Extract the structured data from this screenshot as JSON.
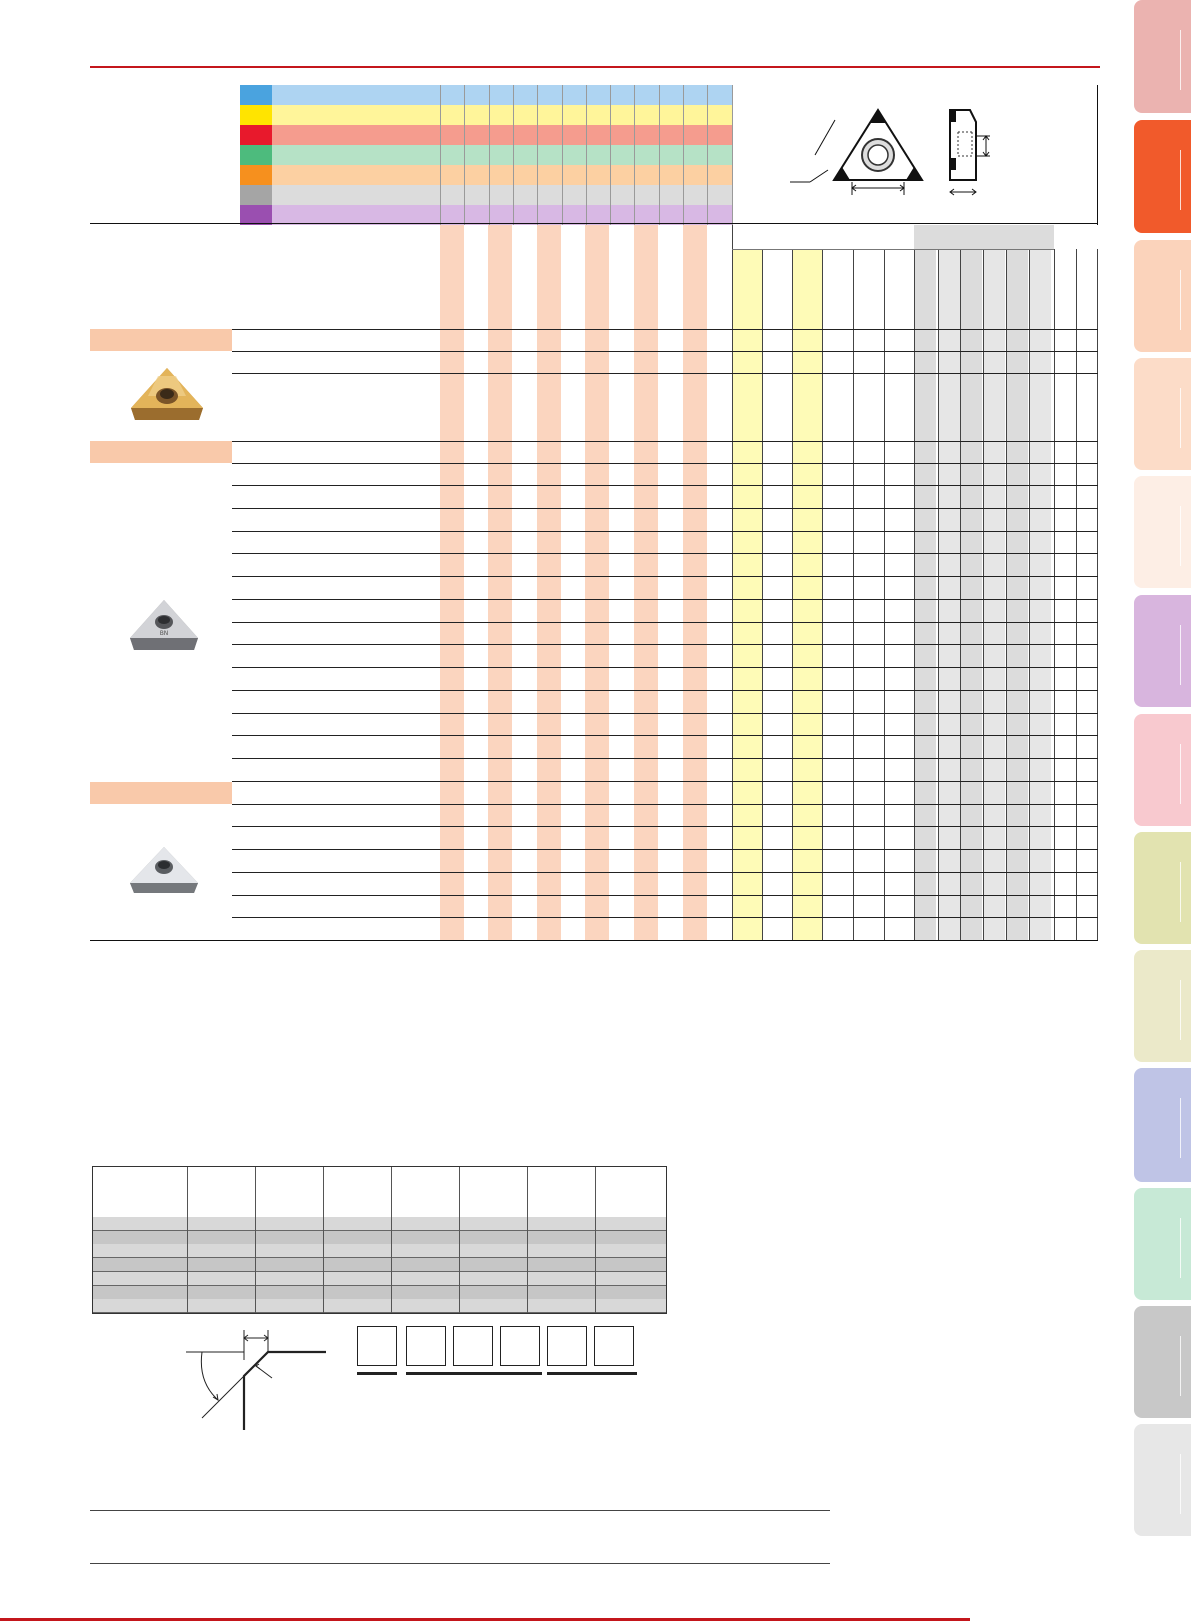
{
  "page": {
    "background": "#ffffff",
    "accent_color": "#c4161c"
  },
  "legend": {
    "swatch_colors": [
      "#4aa3df",
      "#ffe400",
      "#e8192c",
      "#4dbb7d",
      "#f6901e",
      "#a5a5a5",
      "#9a4fb0"
    ],
    "bar_colors": [
      "#aed4f2",
      "#fff59a",
      "#f59c8e",
      "#b6e2c6",
      "#fcd0a2",
      "#dcdcdc",
      "#d8b8e4"
    ]
  },
  "table": {
    "orange_column_color": "#fbd5bf",
    "yellow_column_color": "#fefbb7",
    "grey_column_color": "#dcdcdc",
    "section_band_color": "#f9c9aa",
    "sections": [
      {
        "id": "section-1",
        "insert_image": "gold-triangular-insert-icon"
      },
      {
        "id": "section-2",
        "insert_image": "grey-triangular-insert-icon"
      },
      {
        "id": "section-3",
        "insert_image": "silver-triangular-insert-icon"
      }
    ]
  },
  "side_tabs": {
    "colors": [
      "#ebb3b0",
      "#f15a2b",
      "#fbd3bb",
      "#fcdcc8",
      "#fdeee5",
      "#d8b5de",
      "#f8c9cf",
      "#e2e3b0",
      "#ebe9c9",
      "#bfc4e6",
      "#c7e9d6",
      "#c8c8c8",
      "#e7e7e7"
    ]
  },
  "diagrams": {
    "insert_view": "triangle-insert-dimension-diagram",
    "chamfer_view": "chamfer-angle-diagram"
  }
}
